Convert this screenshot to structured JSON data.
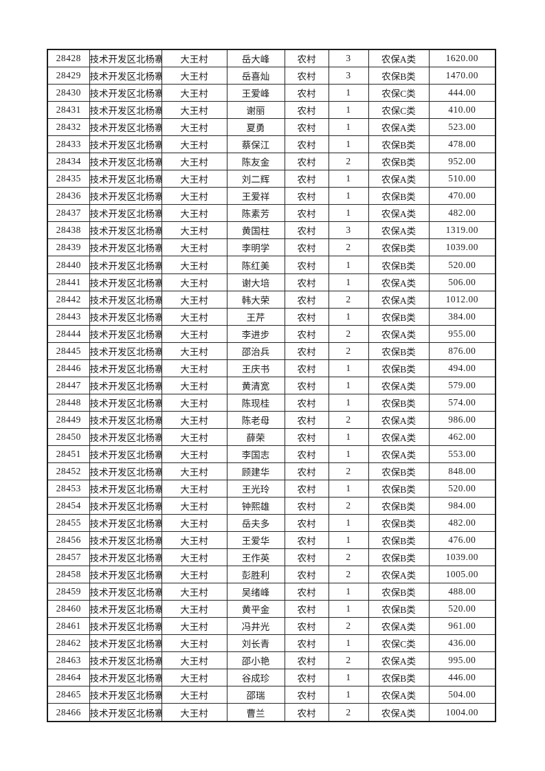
{
  "page": {
    "background_color": "#ffffff",
    "text_color": "#1d1d1d",
    "border_color": "#1c1c1c"
  },
  "table": {
    "rows": [
      {
        "id": "28428",
        "district": "技术开发区北杨寨",
        "village": "大王村",
        "name": "岳大峰",
        "type": "农村",
        "count": "3",
        "category": "农保A类",
        "amount": "1620.00"
      },
      {
        "id": "28429",
        "district": "技术开发区北杨寨",
        "village": "大王村",
        "name": "岳喜灿",
        "type": "农村",
        "count": "3",
        "category": "农保B类",
        "amount": "1470.00"
      },
      {
        "id": "28430",
        "district": "技术开发区北杨寨",
        "village": "大王村",
        "name": "王爱峰",
        "type": "农村",
        "count": "1",
        "category": "农保C类",
        "amount": "444.00"
      },
      {
        "id": "28431",
        "district": "技术开发区北杨寨",
        "village": "大王村",
        "name": "谢丽",
        "type": "农村",
        "count": "1",
        "category": "农保C类",
        "amount": "410.00"
      },
      {
        "id": "28432",
        "district": "技术开发区北杨寨",
        "village": "大王村",
        "name": "夏勇",
        "type": "农村",
        "count": "1",
        "category": "农保A类",
        "amount": "523.00"
      },
      {
        "id": "28433",
        "district": "技术开发区北杨寨",
        "village": "大王村",
        "name": "蔡保江",
        "type": "农村",
        "count": "1",
        "category": "农保B类",
        "amount": "478.00"
      },
      {
        "id": "28434",
        "district": "技术开发区北杨寨",
        "village": "大王村",
        "name": "陈友金",
        "type": "农村",
        "count": "2",
        "category": "农保B类",
        "amount": "952.00"
      },
      {
        "id": "28435",
        "district": "技术开发区北杨寨",
        "village": "大王村",
        "name": "刘二辉",
        "type": "农村",
        "count": "1",
        "category": "农保A类",
        "amount": "510.00"
      },
      {
        "id": "28436",
        "district": "技术开发区北杨寨",
        "village": "大王村",
        "name": "王爱祥",
        "type": "农村",
        "count": "1",
        "category": "农保B类",
        "amount": "470.00"
      },
      {
        "id": "28437",
        "district": "技术开发区北杨寨",
        "village": "大王村",
        "name": "陈素芳",
        "type": "农村",
        "count": "1",
        "category": "农保A类",
        "amount": "482.00"
      },
      {
        "id": "28438",
        "district": "技术开发区北杨寨",
        "village": "大王村",
        "name": "黄国柱",
        "type": "农村",
        "count": "3",
        "category": "农保A类",
        "amount": "1319.00"
      },
      {
        "id": "28439",
        "district": "技术开发区北杨寨",
        "village": "大王村",
        "name": "李明学",
        "type": "农村",
        "count": "2",
        "category": "农保B类",
        "amount": "1039.00"
      },
      {
        "id": "28440",
        "district": "技术开发区北杨寨",
        "village": "大王村",
        "name": "陈红美",
        "type": "农村",
        "count": "1",
        "category": "农保B类",
        "amount": "520.00"
      },
      {
        "id": "28441",
        "district": "技术开发区北杨寨",
        "village": "大王村",
        "name": "谢大培",
        "type": "农村",
        "count": "1",
        "category": "农保A类",
        "amount": "506.00"
      },
      {
        "id": "28442",
        "district": "技术开发区北杨寨",
        "village": "大王村",
        "name": "韩大荣",
        "type": "农村",
        "count": "2",
        "category": "农保A类",
        "amount": "1012.00"
      },
      {
        "id": "28443",
        "district": "技术开发区北杨寨",
        "village": "大王村",
        "name": "王芹",
        "type": "农村",
        "count": "1",
        "category": "农保B类",
        "amount": "384.00"
      },
      {
        "id": "28444",
        "district": "技术开发区北杨寨",
        "village": "大王村",
        "name": "李进步",
        "type": "农村",
        "count": "2",
        "category": "农保A类",
        "amount": "955.00"
      },
      {
        "id": "28445",
        "district": "技术开发区北杨寨",
        "village": "大王村",
        "name": "邵治兵",
        "type": "农村",
        "count": "2",
        "category": "农保B类",
        "amount": "876.00"
      },
      {
        "id": "28446",
        "district": "技术开发区北杨寨",
        "village": "大王村",
        "name": "王庆书",
        "type": "农村",
        "count": "1",
        "category": "农保B类",
        "amount": "494.00"
      },
      {
        "id": "28447",
        "district": "技术开发区北杨寨",
        "village": "大王村",
        "name": "黄清宽",
        "type": "农村",
        "count": "1",
        "category": "农保A类",
        "amount": "579.00"
      },
      {
        "id": "28448",
        "district": "技术开发区北杨寨",
        "village": "大王村",
        "name": "陈现桂",
        "type": "农村",
        "count": "1",
        "category": "农保B类",
        "amount": "574.00"
      },
      {
        "id": "28449",
        "district": "技术开发区北杨寨",
        "village": "大王村",
        "name": "陈老母",
        "type": "农村",
        "count": "2",
        "category": "农保A类",
        "amount": "986.00"
      },
      {
        "id": "28450",
        "district": "技术开发区北杨寨",
        "village": "大王村",
        "name": "薛荣",
        "type": "农村",
        "count": "1",
        "category": "农保A类",
        "amount": "462.00"
      },
      {
        "id": "28451",
        "district": "技术开发区北杨寨",
        "village": "大王村",
        "name": "李国志",
        "type": "农村",
        "count": "1",
        "category": "农保A类",
        "amount": "553.00"
      },
      {
        "id": "28452",
        "district": "技术开发区北杨寨",
        "village": "大王村",
        "name": "顾建华",
        "type": "农村",
        "count": "2",
        "category": "农保B类",
        "amount": "848.00"
      },
      {
        "id": "28453",
        "district": "技术开发区北杨寨",
        "village": "大王村",
        "name": "王光玲",
        "type": "农村",
        "count": "1",
        "category": "农保B类",
        "amount": "520.00"
      },
      {
        "id": "28454",
        "district": "技术开发区北杨寨",
        "village": "大王村",
        "name": "钟熙雄",
        "type": "农村",
        "count": "2",
        "category": "农保B类",
        "amount": "984.00"
      },
      {
        "id": "28455",
        "district": "技术开发区北杨寨",
        "village": "大王村",
        "name": "岳夫多",
        "type": "农村",
        "count": "1",
        "category": "农保B类",
        "amount": "482.00"
      },
      {
        "id": "28456",
        "district": "技术开发区北杨寨",
        "village": "大王村",
        "name": "王爱华",
        "type": "农村",
        "count": "1",
        "category": "农保B类",
        "amount": "476.00"
      },
      {
        "id": "28457",
        "district": "技术开发区北杨寨",
        "village": "大王村",
        "name": "王作英",
        "type": "农村",
        "count": "2",
        "category": "农保B类",
        "amount": "1039.00"
      },
      {
        "id": "28458",
        "district": "技术开发区北杨寨",
        "village": "大王村",
        "name": "彭胜利",
        "type": "农村",
        "count": "2",
        "category": "农保A类",
        "amount": "1005.00"
      },
      {
        "id": "28459",
        "district": "技术开发区北杨寨",
        "village": "大王村",
        "name": "吴绪峰",
        "type": "农村",
        "count": "1",
        "category": "农保B类",
        "amount": "488.00"
      },
      {
        "id": "28460",
        "district": "技术开发区北杨寨",
        "village": "大王村",
        "name": "黄平金",
        "type": "农村",
        "count": "1",
        "category": "农保B类",
        "amount": "520.00"
      },
      {
        "id": "28461",
        "district": "技术开发区北杨寨",
        "village": "大王村",
        "name": "冯井光",
        "type": "农村",
        "count": "2",
        "category": "农保A类",
        "amount": "961.00"
      },
      {
        "id": "28462",
        "district": "技术开发区北杨寨",
        "village": "大王村",
        "name": "刘长青",
        "type": "农村",
        "count": "1",
        "category": "农保C类",
        "amount": "436.00"
      },
      {
        "id": "28463",
        "district": "技术开发区北杨寨",
        "village": "大王村",
        "name": "邵小艳",
        "type": "农村",
        "count": "2",
        "category": "农保A类",
        "amount": "995.00"
      },
      {
        "id": "28464",
        "district": "技术开发区北杨寨",
        "village": "大王村",
        "name": "谷成珍",
        "type": "农村",
        "count": "1",
        "category": "农保B类",
        "amount": "446.00"
      },
      {
        "id": "28465",
        "district": "技术开发区北杨寨",
        "village": "大王村",
        "name": "邵瑞",
        "type": "农村",
        "count": "1",
        "category": "农保A类",
        "amount": "504.00"
      },
      {
        "id": "28466",
        "district": "技术开发区北杨寨",
        "village": "大王村",
        "name": "曹兰",
        "type": "农村",
        "count": "2",
        "category": "农保A类",
        "amount": "1004.00"
      }
    ]
  }
}
